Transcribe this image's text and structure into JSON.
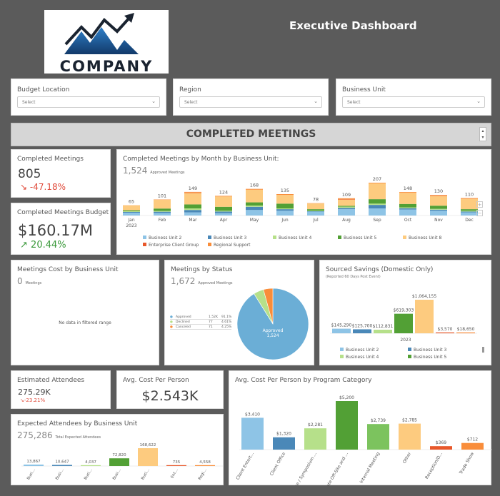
{
  "header": {
    "title": "Executive Dashboard",
    "logo_text": "COMPANY"
  },
  "filters": [
    {
      "label": "Budget Location",
      "value": "Select"
    },
    {
      "label": "Region",
      "value": "Select"
    },
    {
      "label": "Business Unit",
      "value": "Select"
    }
  ],
  "banner": {
    "title": "COMPLETED MEETINGS"
  },
  "kpis": {
    "completed": {
      "title": "Completed Meetings",
      "value": "805",
      "change": "-47.18%",
      "direction": "down"
    },
    "budget": {
      "title": "Completed Meetings Budget",
      "value": "$160.17M",
      "change": "20.44%",
      "direction": "up"
    },
    "attendees": {
      "title": "Estimated Attendees",
      "value": "275.29K",
      "change": "-23.21%",
      "direction": "down"
    },
    "avg_cost": {
      "title": "Avg. Cost Per Person",
      "value": "$2.543K"
    }
  },
  "colors": {
    "Business Unit 2": "#8ec4e6",
    "Business Unit 3": "#4a88b8",
    "Business Unit 4": "#b6e08a",
    "Business Unit 5": "#52a035",
    "Business Unit 8": "#fdcb7f",
    "Enterprise Client Group": "#e8572a",
    "Regional Support": "#f98d3a",
    "down": "#e04a3a",
    "up": "#3c9a3c"
  },
  "chart_data": [
    {
      "id": "monthly",
      "type": "bar",
      "stacked": true,
      "title": "Completed Meetings by Month by Business Unit:",
      "subtitle_value": "1,524",
      "subtitle_label": "Approved Meetings",
      "categories": [
        "Jan",
        "Feb",
        "Mar",
        "Apr",
        "May",
        "Jun",
        "Jul",
        "Aug",
        "Sep",
        "Oct",
        "Nov",
        "Dec"
      ],
      "year_label": "2023",
      "totals": [
        65,
        101,
        149,
        124,
        168,
        135,
        78,
        109,
        207,
        148,
        130,
        110
      ],
      "series": [
        {
          "name": "Business Unit 2",
          "values": [
            18,
            16,
            20,
            15,
            35,
            30,
            25,
            40,
            45,
            38,
            30,
            20
          ]
        },
        {
          "name": "Business Unit 3",
          "values": [
            5,
            8,
            15,
            10,
            20,
            10,
            2,
            8,
            22,
            8,
            7,
            5
          ]
        },
        {
          "name": "Business Unit 4",
          "values": [
            4,
            5,
            10,
            5,
            8,
            5,
            3,
            8,
            8,
            5,
            5,
            5
          ]
        },
        {
          "name": "Business Unit 5",
          "values": [
            6,
            15,
            25,
            25,
            20,
            30,
            10,
            5,
            28,
            22,
            20,
            10
          ]
        },
        {
          "name": "Business Unit 8",
          "values": [
            31,
            55,
            72,
            65,
            80,
            55,
            36,
            40,
            100,
            70,
            62,
            65
          ]
        },
        {
          "name": "Enterprise Client Group",
          "values": [
            0,
            0,
            3,
            0,
            0,
            0,
            0,
            3,
            0,
            0,
            3,
            0
          ]
        },
        {
          "name": "Regional Support",
          "values": [
            1,
            2,
            4,
            4,
            5,
            5,
            2,
            5,
            4,
            5,
            3,
            5
          ]
        }
      ],
      "legend": "bottom",
      "zoom_plus": "+",
      "zoom_minus": "−"
    },
    {
      "id": "cost_bu",
      "type": "bar",
      "title": "Meetings Cost by Business Unit",
      "subtitle_value": "0",
      "subtitle_label": "Meetings",
      "empty_text": "No data in filtered range"
    },
    {
      "id": "status",
      "type": "pie",
      "title": "Meetings by Status",
      "subtitle_value": "1,672",
      "subtitle_label": "Approved Meetings",
      "slices": [
        {
          "label": "Approved",
          "value": 1524,
          "display": "1.52K",
          "pct": "91.1%",
          "color": "#6baed6"
        },
        {
          "label": "Declined",
          "value": 77,
          "display": "77",
          "pct": "4.61%",
          "color": "#b6e08a"
        },
        {
          "label": "Canceled",
          "value": 71,
          "display": "71",
          "pct": "4.25%",
          "color": "#f98d3a"
        }
      ],
      "slice_label": "Approved",
      "slice_value": "1,524"
    },
    {
      "id": "savings",
      "type": "bar",
      "title": "Sourced Savings (Domestic Only)",
      "subtitle": "(Reported 60 Days Post Event)",
      "x_label": "2023",
      "categories": [
        "Business Unit 2",
        "Business Unit 3",
        "Business Unit 4",
        "Business Unit 5",
        "Business Unit 8",
        "Enterprise Client Group",
        "Regional Support"
      ],
      "values": [
        145290,
        125700,
        112831,
        619303,
        1064155,
        3570,
        18650
      ],
      "labels": [
        "$145,290",
        "$125,700",
        "$112,831",
        "$619,303",
        "$1,064,155",
        "$3,570",
        "$18,650"
      ],
      "legend_visible": [
        "Business Unit 2",
        "Business Unit 3",
        "Business Unit 4",
        "Business Unit 5"
      ]
    },
    {
      "id": "expected",
      "type": "bar",
      "title": "Expected Attendees by Business Unit",
      "subtitle_value": "275,286",
      "subtitle_label": "Total Expected Attendees",
      "categories": [
        "Busi...",
        "Busi...",
        "Busi...",
        "Busi...",
        "Busi...",
        "Ent...",
        "Regi..."
      ],
      "values": [
        13867,
        10647,
        4037,
        72820,
        168622,
        735,
        4558
      ],
      "labels": [
        "13,867",
        "10,647",
        "4,037",
        "72,820",
        "168,622",
        "735",
        "4,558"
      ]
    },
    {
      "id": "program",
      "type": "bar",
      "title": "Avg. Cost Per Person by Program Category",
      "categories": [
        "Client Entert...",
        "Client Office",
        "Conference / Symposium ...",
        "Corporate Off-Site and ...",
        "Internal Meeting",
        "Other",
        "Reception/D...",
        "Trade Show"
      ],
      "values": [
        3410,
        1320,
        2281,
        5200,
        2739,
        2785,
        369,
        712
      ],
      "labels": [
        "$3,410",
        "$1,320",
        "$2,281",
        "$5,200",
        "$2,739",
        "$2,785",
        "$369",
        "$712"
      ],
      "colors": [
        "#8ec4e6",
        "#4a88b8",
        "#b6e08a",
        "#52a035",
        "#7cc35e",
        "#fdcb7f",
        "#e8572a",
        "#f98d3a"
      ]
    }
  ]
}
